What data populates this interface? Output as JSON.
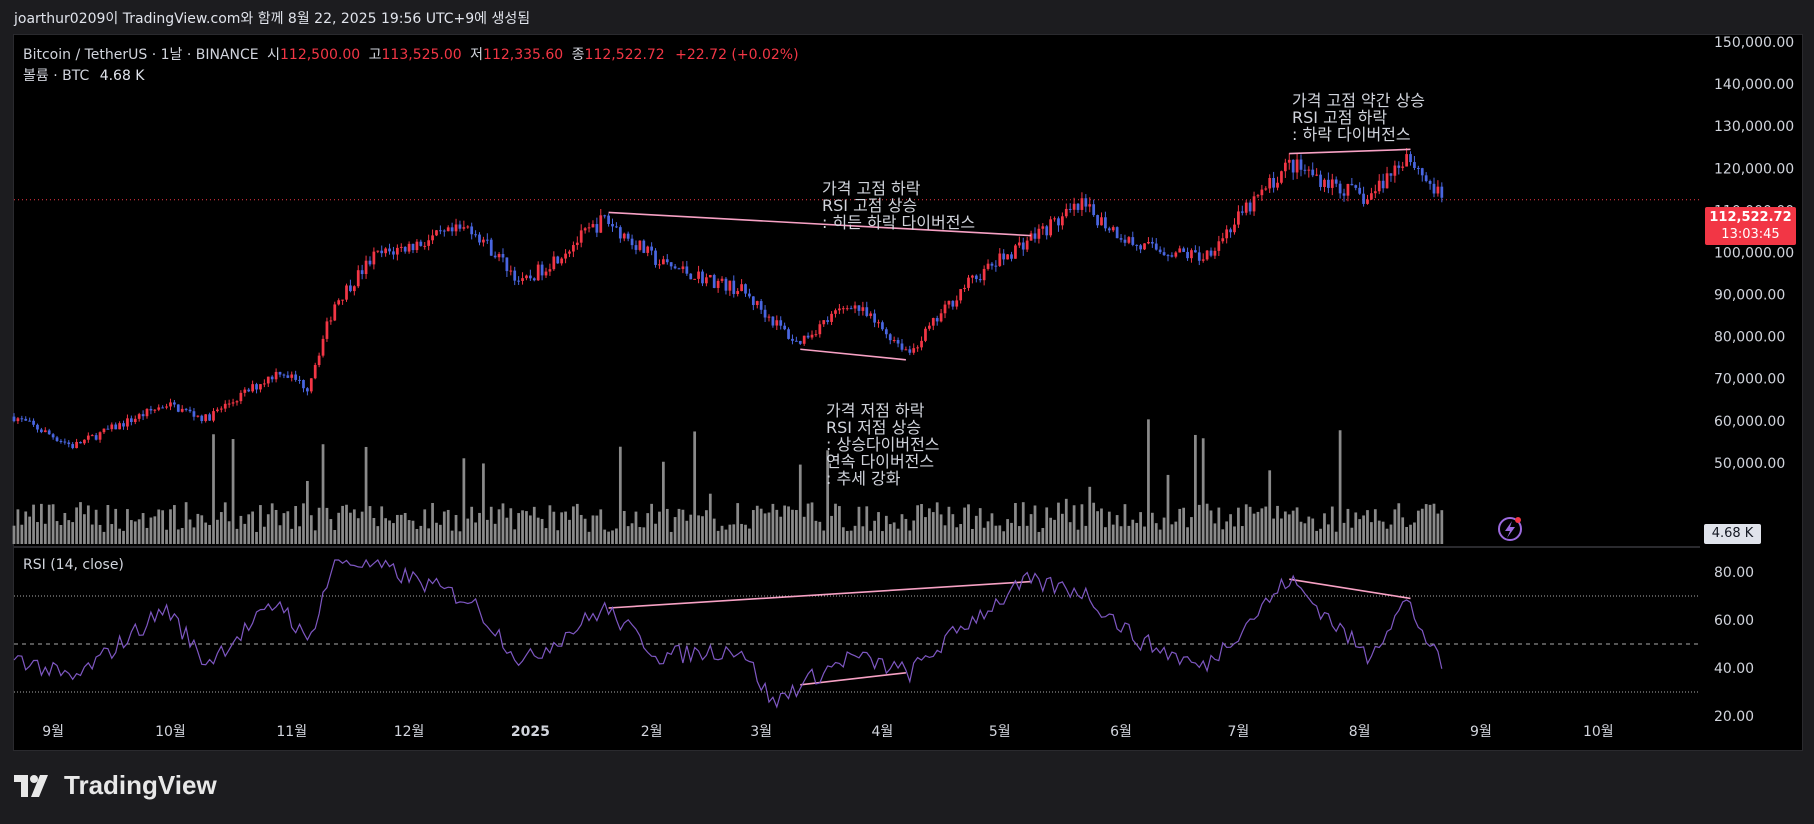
{
  "header": {
    "text": "joarthur0209이 TradingView.com와 함께 8월 22, 2025 19:56 UTC+9에 생성됨"
  },
  "legend": {
    "symbol": "Bitcoin / TetherUS · 1날 · BINANCE",
    "o_label": "시",
    "o_value": "112,500.00",
    "h_label": "고",
    "h_value": "113,525.00",
    "l_label": "저",
    "l_value": "112,335.60",
    "c_label": "종",
    "c_value": "112,522.72",
    "change": "+22.72 (+0.02%)",
    "volume_label": "볼륨 · BTC",
    "volume_value": "4.68 K"
  },
  "rsi_label": "RSI (14, close)",
  "price_tag": {
    "price": "112,522.72",
    "countdown": "13:03:45"
  },
  "volume_tag": "4.68 K",
  "annotations": [
    {
      "lines": [
        "가격 고점 하락",
        "RSI 고점 상승",
        ": 히든 하락 다이버전스"
      ]
    },
    {
      "lines": [
        "가격 고점 약간 상승",
        "RSI 고점 하락",
        ": 하락 다이버전스"
      ]
    },
    {
      "lines": [
        "가격 저점 하락",
        "RSI 저점 상승",
        ": 상승다이버전스",
        "연속 다이버전스",
        ": 추세 강화"
      ]
    }
  ],
  "brand": {
    "name": "TradingView"
  },
  "colors": {
    "up": "#f23645",
    "down": "#4966e0",
    "rsi_line": "#7e57c2",
    "trendline": "#f7a1c4",
    "volume": "#8a8a8a"
  },
  "chart_data": [
    {
      "type": "candlestick",
      "title": "Bitcoin / TetherUS · 1날 · BINANCE",
      "x_ticks": [
        "9월",
        "10월",
        "11월",
        "12월",
        "2025",
        "2월",
        "3월",
        "4월",
        "5월",
        "6월",
        "7월",
        "8월",
        "9월",
        "10월"
      ],
      "y_ticks": [
        "150,000.00",
        "140,000.00",
        "130,000.00",
        "120,000.00",
        "110,000.00",
        "100,000.00",
        "90,000.00",
        "80,000.00",
        "70,000.00",
        "60,000.00",
        "50,000.00"
      ],
      "ylim": [
        40000,
        150000
      ],
      "last_price": 112522.72,
      "approx_close_path": [
        [
          "2024-08-22",
          61000
        ],
        [
          "2024-09-06",
          54000
        ],
        [
          "2024-09-30",
          64000
        ],
        [
          "2024-10-10",
          60500
        ],
        [
          "2024-10-29",
          72000
        ],
        [
          "2024-11-05",
          68000
        ],
        [
          "2024-11-12",
          88000
        ],
        [
          "2024-11-22",
          99000
        ],
        [
          "2024-12-17",
          106000
        ],
        [
          "2024-12-30",
          92500
        ],
        [
          "2025-01-20",
          108000
        ],
        [
          "2025-02-03",
          97500
        ],
        [
          "2025-02-24",
          91000
        ],
        [
          "2025-03-10",
          78500
        ],
        [
          "2025-03-24",
          88000
        ],
        [
          "2025-04-08",
          76300
        ],
        [
          "2025-04-22",
          92000
        ],
        [
          "2025-05-08",
          103000
        ],
        [
          "2025-05-22",
          111000
        ],
        [
          "2025-06-05",
          101500
        ],
        [
          "2025-06-22",
          99000
        ],
        [
          "2025-07-14",
          121000
        ],
        [
          "2025-08-03",
          112500
        ],
        [
          "2025-08-13",
          123500
        ],
        [
          "2025-08-22",
          112522.72
        ]
      ],
      "trendlines": [
        {
          "from": [
            "2025-01-21",
            109500
          ],
          "to": [
            "2025-05-09",
            104000
          ]
        },
        {
          "from": [
            "2025-03-11",
            77000
          ],
          "to": [
            "2025-04-07",
            74500
          ]
        },
        {
          "from": [
            "2025-07-14",
            123500
          ],
          "to": [
            "2025-08-14",
            124500
          ]
        }
      ]
    },
    {
      "type": "line",
      "title": "RSI (14, close)",
      "y_ticks": [
        "80.00",
        "60.00",
        "40.00",
        "20.00"
      ],
      "ylim": [
        15,
        85
      ],
      "bands": [
        70,
        50,
        30
      ],
      "approx_values": [
        [
          "2024-08-22",
          45
        ],
        [
          "2024-09-06",
          35
        ],
        [
          "2024-09-30",
          65
        ],
        [
          "2024-10-10",
          42
        ],
        [
          "2024-10-29",
          68
        ],
        [
          "2024-11-05",
          50
        ],
        [
          "2024-11-12",
          85
        ],
        [
          "2024-11-22",
          83
        ],
        [
          "2024-12-17",
          68
        ],
        [
          "2024-12-30",
          42
        ],
        [
          "2025-01-20",
          65
        ],
        [
          "2025-02-03",
          45
        ],
        [
          "2025-02-24",
          48
        ],
        [
          "2025-03-04",
          25
        ],
        [
          "2025-03-10",
          32
        ],
        [
          "2025-03-24",
          45
        ],
        [
          "2025-04-08",
          38
        ],
        [
          "2025-04-22",
          58
        ],
        [
          "2025-05-08",
          76
        ],
        [
          "2025-05-22",
          72
        ],
        [
          "2025-06-05",
          52
        ],
        [
          "2025-06-22",
          40
        ],
        [
          "2025-07-14",
          77
        ],
        [
          "2025-08-03",
          45
        ],
        [
          "2025-08-13",
          68
        ],
        [
          "2025-08-22",
          40
        ]
      ],
      "trendlines": [
        {
          "from": [
            "2025-01-21",
            65
          ],
          "to": [
            "2025-05-09",
            76
          ]
        },
        {
          "from": [
            "2025-03-11",
            33
          ],
          "to": [
            "2025-04-07",
            38
          ]
        },
        {
          "from": [
            "2025-07-14",
            77
          ],
          "to": [
            "2025-08-14",
            69
          ]
        }
      ]
    }
  ]
}
